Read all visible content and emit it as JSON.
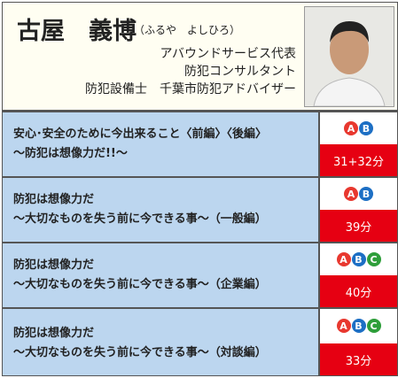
{
  "header": {
    "name": "古屋　義博",
    "reading": "（ふるや　よしひろ）",
    "titles": [
      "アバウンドサービス代表",
      "防犯コンサルタント",
      "防犯設備士　千葉市防犯アドバイザー"
    ]
  },
  "sessions": [
    {
      "title_lines": [
        "安心･安全のために今出来ること〈前編〉〈後編〉",
        "～防犯は想像力だ!!～"
      ],
      "badges": [
        "A",
        "B"
      ],
      "duration": "31+32分"
    },
    {
      "title_lines": [
        "防犯は想像力だ",
        "～大切なものを失う前に今できる事～（一般編）"
      ],
      "badges": [
        "A",
        "B"
      ],
      "duration": "39分"
    },
    {
      "title_lines": [
        "防犯は想像力だ",
        "～大切なものを失う前に今できる事～（企業編）"
      ],
      "badges": [
        "A",
        "B",
        "C"
      ],
      "duration": "40分"
    },
    {
      "title_lines": [
        "防犯は想像力だ",
        "～大切なものを失う前に今できる事～（対談編）"
      ],
      "badges": [
        "A",
        "B",
        "C"
      ],
      "duration": "33分"
    }
  ]
}
